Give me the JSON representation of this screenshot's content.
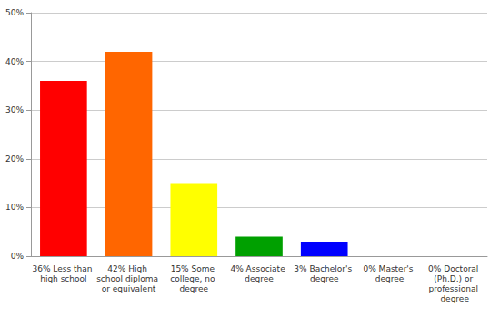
{
  "chart_data": {
    "type": "bar",
    "categories": [
      "36% Less than high school",
      "42% High school diploma or equivalent",
      "15% Some college, no degree",
      "4% Associate degree",
      "3% Bachelor's degree",
      "0% Master's degree",
      "0% Doctoral (Ph.D.) or professional degree"
    ],
    "values": [
      36,
      42,
      15,
      4,
      3,
      0,
      0
    ],
    "colors": [
      "#ff0000",
      "#ff6600",
      "#ffff00",
      "#00a000",
      "#0000ff",
      "#9900ff",
      "#ff00ff"
    ],
    "ylim": [
      0,
      50
    ],
    "yticks": [
      {
        "value": 0,
        "label": "0%"
      },
      {
        "value": 10,
        "label": "10%"
      },
      {
        "value": 20,
        "label": "20%"
      },
      {
        "value": 30,
        "label": "30%"
      },
      {
        "value": 40,
        "label": "40%"
      },
      {
        "value": 50,
        "label": "50%"
      }
    ],
    "grid": true
  }
}
